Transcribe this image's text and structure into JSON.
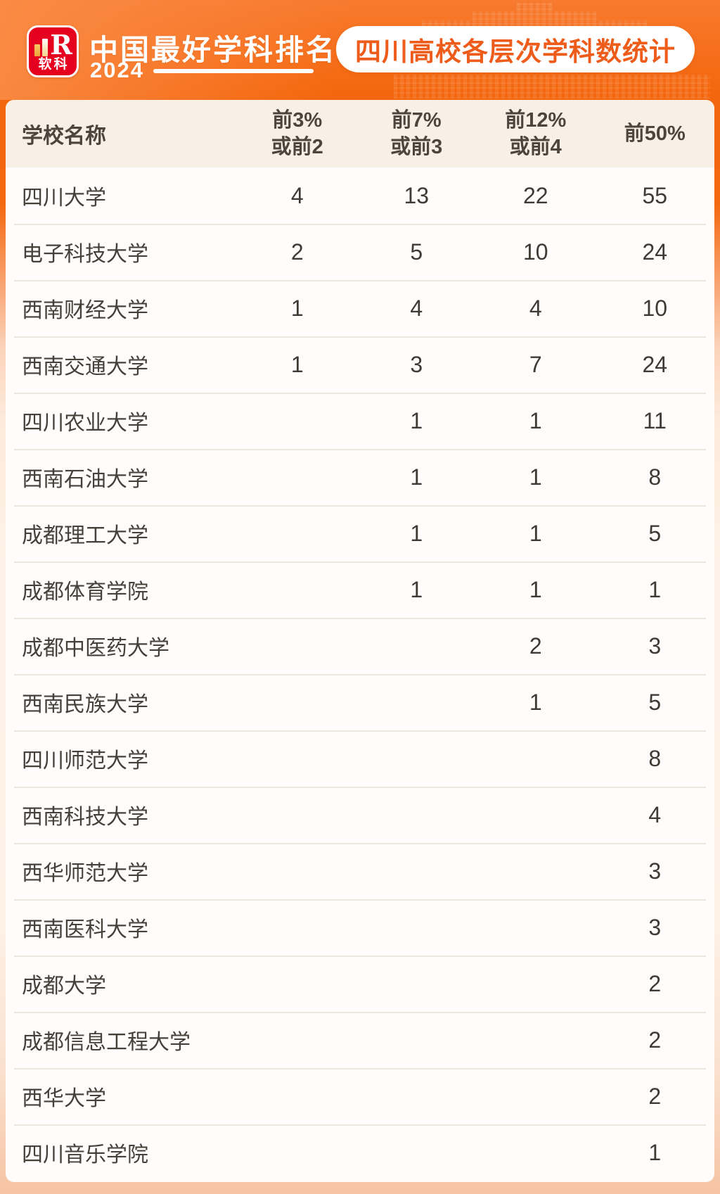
{
  "brand": {
    "logo_cn": "软科",
    "logo_mark_letter": "R",
    "title": "中国最好学科排名",
    "year": "2024",
    "badge": "四川高校各层次学科数统计"
  },
  "colors": {
    "accent_orange": "#f4660e",
    "badge_text_orange": "#ee5c1b",
    "logo_red": "#e60020",
    "table_header_bg": "#f8efe5",
    "card_bg": "#fefdfb",
    "row_separator": "#eae7e1",
    "text_dark": "#45403a",
    "page_bottom_peach": "#f6c3a3"
  },
  "table": {
    "header": {
      "school": "学校名称",
      "cols": [
        {
          "line1": "前3%",
          "line2": "或前2"
        },
        {
          "line1": "前7%",
          "line2": "或前3"
        },
        {
          "line1": "前12%",
          "line2": "或前4"
        },
        {
          "line1": "前50%",
          "line2": ""
        }
      ]
    },
    "rows": [
      {
        "name": "四川大学",
        "values": [
          "4",
          "13",
          "22",
          "55"
        ]
      },
      {
        "name": "电子科技大学",
        "values": [
          "2",
          "5",
          "10",
          "24"
        ]
      },
      {
        "name": "西南财经大学",
        "values": [
          "1",
          "4",
          "4",
          "10"
        ]
      },
      {
        "name": "西南交通大学",
        "values": [
          "1",
          "3",
          "7",
          "24"
        ]
      },
      {
        "name": "四川农业大学",
        "values": [
          "",
          "1",
          "1",
          "11"
        ]
      },
      {
        "name": "西南石油大学",
        "values": [
          "",
          "1",
          "1",
          "8"
        ]
      },
      {
        "name": "成都理工大学",
        "values": [
          "",
          "1",
          "1",
          "5"
        ]
      },
      {
        "name": "成都体育学院",
        "values": [
          "",
          "1",
          "1",
          "1"
        ]
      },
      {
        "name": "成都中医药大学",
        "values": [
          "",
          "",
          "2",
          "3"
        ]
      },
      {
        "name": "西南民族大学",
        "values": [
          "",
          "",
          "1",
          "5"
        ]
      },
      {
        "name": "四川师范大学",
        "values": [
          "",
          "",
          "",
          "8"
        ]
      },
      {
        "name": "西南科技大学",
        "values": [
          "",
          "",
          "",
          "4"
        ]
      },
      {
        "name": "西华师范大学",
        "values": [
          "",
          "",
          "",
          "3"
        ]
      },
      {
        "name": "西南医科大学",
        "values": [
          "",
          "",
          "",
          "3"
        ]
      },
      {
        "name": "成都大学",
        "values": [
          "",
          "",
          "",
          "2"
        ]
      },
      {
        "name": "成都信息工程大学",
        "values": [
          "",
          "",
          "",
          "2"
        ]
      },
      {
        "name": "西华大学",
        "values": [
          "",
          "",
          "",
          "2"
        ]
      },
      {
        "name": "四川音乐学院",
        "values": [
          "",
          "",
          "",
          "1"
        ]
      }
    ]
  },
  "chart_data": {
    "type": "table",
    "title": "四川高校各层次学科数统计",
    "ranking_name": "中国最好学科排名",
    "ranking_year": "2024",
    "columns": [
      "学校名称",
      "前3%或前2",
      "前7%或前3",
      "前12%或前4",
      "前50%"
    ],
    "rows": [
      [
        "四川大学",
        4,
        13,
        22,
        55
      ],
      [
        "电子科技大学",
        2,
        5,
        10,
        24
      ],
      [
        "西南财经大学",
        1,
        4,
        4,
        10
      ],
      [
        "西南交通大学",
        1,
        3,
        7,
        24
      ],
      [
        "四川农业大学",
        null,
        1,
        1,
        11
      ],
      [
        "西南石油大学",
        null,
        1,
        1,
        8
      ],
      [
        "成都理工大学",
        null,
        1,
        1,
        5
      ],
      [
        "成都体育学院",
        null,
        1,
        1,
        1
      ],
      [
        "成都中医药大学",
        null,
        null,
        2,
        3
      ],
      [
        "西南民族大学",
        null,
        null,
        1,
        5
      ],
      [
        "四川师范大学",
        null,
        null,
        null,
        8
      ],
      [
        "西南科技大学",
        null,
        null,
        null,
        4
      ],
      [
        "西华师范大学",
        null,
        null,
        null,
        3
      ],
      [
        "西南医科大学",
        null,
        null,
        null,
        3
      ],
      [
        "成都大学",
        null,
        null,
        null,
        2
      ],
      [
        "成都信息工程大学",
        null,
        null,
        null,
        2
      ],
      [
        "西华大学",
        null,
        null,
        null,
        2
      ],
      [
        "四川音乐学院",
        null,
        null,
        null,
        1
      ]
    ]
  }
}
